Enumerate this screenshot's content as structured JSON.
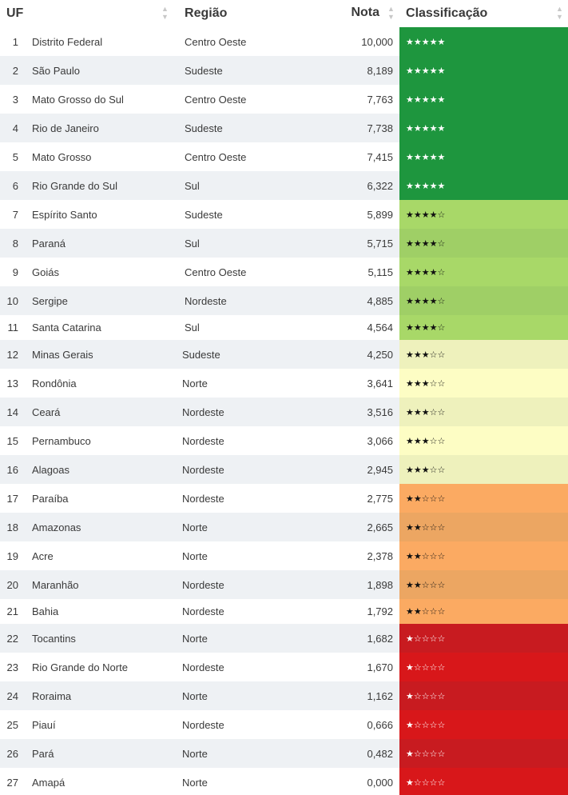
{
  "header": {
    "uf": "UF",
    "regiao": "Região",
    "nota": "Nota",
    "classificacao": "Classificação",
    "sort_icon": "sort-icon"
  },
  "rows": [
    {
      "rank": "1",
      "name": "Distrito Federal",
      "region": "Centro Oeste",
      "score": "10,000",
      "stars": "★★★★★",
      "color": "#1e963e"
    },
    {
      "rank": "2",
      "name": "São Paulo",
      "region": "Sudeste",
      "score": "8,189",
      "stars": "★★★★★",
      "color": "#1e963e"
    },
    {
      "rank": "3",
      "name": "Mato Grosso do Sul",
      "region": "Centro Oeste",
      "score": "7,763",
      "stars": "★★★★★",
      "color": "#1e963e"
    },
    {
      "rank": "4",
      "name": "Rio de Janeiro",
      "region": "Sudeste",
      "score": "7,738",
      "stars": "★★★★★",
      "color": "#1e963e"
    },
    {
      "rank": "5",
      "name": "Mato Grosso",
      "region": "Centro Oeste",
      "score": "7,415",
      "stars": "★★★★★",
      "color": "#1e963e"
    },
    {
      "rank": "6",
      "name": "Rio Grande do Sul",
      "region": "Sul",
      "score": "6,322",
      "stars": "★★★★★",
      "color": "#1e963e"
    },
    {
      "rank": "7",
      "name": "Espírito Santo",
      "region": "Sudeste",
      "score": "5,899",
      "stars": "★★★★☆",
      "color": "#a8d868"
    },
    {
      "rank": "8",
      "name": "Paraná",
      "region": "Sul",
      "score": "5,715",
      "stars": "★★★★☆",
      "color": "#9fcf66"
    },
    {
      "rank": "9",
      "name": "Goiás",
      "region": "Centro Oeste",
      "score": "5,115",
      "stars": "★★★★☆",
      "color": "#a8d868"
    },
    {
      "rank": "10",
      "name": "Sergipe",
      "region": "Nordeste",
      "score": "4,885",
      "stars": "★★★★☆",
      "color": "#9fcf66"
    },
    {
      "rank": "11",
      "name": "Santa Catarina",
      "region": "Sul",
      "score": "4,564",
      "stars": "★★★★☆",
      "color": "#a8d868"
    },
    {
      "rank": "12",
      "name": "Minas Gerais",
      "region": "Sudeste",
      "score": "4,250",
      "stars": "★★★☆☆",
      "color": "#eef1bc"
    },
    {
      "rank": "13",
      "name": "Rondônia",
      "region": "Norte",
      "score": "3,641",
      "stars": "★★★☆☆",
      "color": "#fdfdc4"
    },
    {
      "rank": "14",
      "name": "Ceará",
      "region": "Nordeste",
      "score": "3,516",
      "stars": "★★★☆☆",
      "color": "#eef1bc"
    },
    {
      "rank": "15",
      "name": "Pernambuco",
      "region": "Nordeste",
      "score": "3,066",
      "stars": "★★★☆☆",
      "color": "#fdfdc4"
    },
    {
      "rank": "16",
      "name": "Alagoas",
      "region": "Nordeste",
      "score": "2,945",
      "stars": "★★★☆☆",
      "color": "#eef1bc"
    },
    {
      "rank": "17",
      "name": "Paraíba",
      "region": "Nordeste",
      "score": "2,775",
      "stars": "★★☆☆☆",
      "color": "#fbaa62"
    },
    {
      "rank": "18",
      "name": "Amazonas",
      "region": "Norte",
      "score": "2,665",
      "stars": "★★☆☆☆",
      "color": "#eca662"
    },
    {
      "rank": "19",
      "name": "Acre",
      "region": "Norte",
      "score": "2,378",
      "stars": "★★☆☆☆",
      "color": "#fbaa62"
    },
    {
      "rank": "20",
      "name": "Maranhão",
      "region": "Nordeste",
      "score": "1,898",
      "stars": "★★☆☆☆",
      "color": "#eca662"
    },
    {
      "rank": "21",
      "name": "Bahia",
      "region": "Nordeste",
      "score": "1,792",
      "stars": "★★☆☆☆",
      "color": "#fbaa62"
    },
    {
      "rank": "22",
      "name": "Tocantins",
      "region": "Norte",
      "score": "1,682",
      "stars": "★☆☆☆☆",
      "color": "#c81b20"
    },
    {
      "rank": "23",
      "name": "Rio Grande do Norte",
      "region": "Nordeste",
      "score": "1,670",
      "stars": "★☆☆☆☆",
      "color": "#d8171a"
    },
    {
      "rank": "24",
      "name": "Roraima",
      "region": "Norte",
      "score": "1,162",
      "stars": "★☆☆☆☆",
      "color": "#c81b20"
    },
    {
      "rank": "25",
      "name": "Piauí",
      "region": "Nordeste",
      "score": "0,666",
      "stars": "★☆☆☆☆",
      "color": "#d8171a"
    },
    {
      "rank": "26",
      "name": "Pará",
      "region": "Norte",
      "score": "0,482",
      "stars": "★☆☆☆☆",
      "color": "#c81b20"
    },
    {
      "rank": "27",
      "name": "Amapá",
      "region": "Norte",
      "score": "0,000",
      "stars": "★☆☆☆☆",
      "color": "#d8171a"
    }
  ]
}
